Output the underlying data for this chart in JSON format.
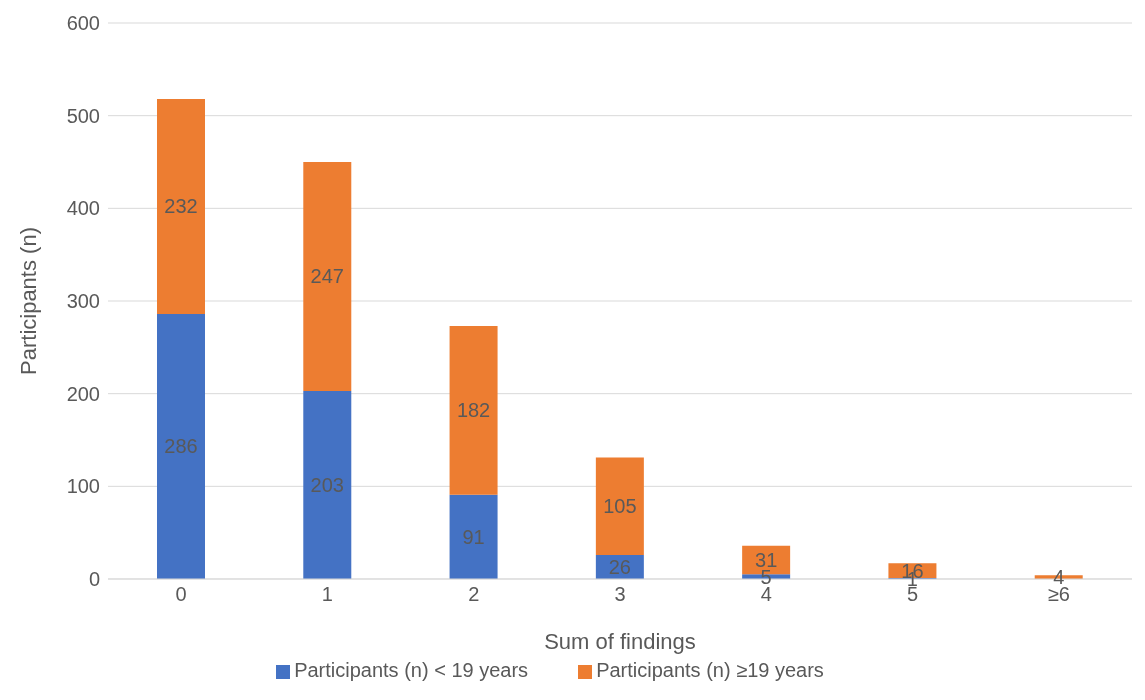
{
  "chart_data": {
    "type": "bar",
    "stacked": true,
    "xlabel": "Sum of findings",
    "ylabel": "Participants (n)",
    "categories": [
      "0",
      "1",
      "2",
      "3",
      "4",
      "5",
      "≥6"
    ],
    "series": [
      {
        "name": "Participants (n) < 19 years",
        "color": "#4472c4",
        "values": [
          286,
          203,
          91,
          26,
          5,
          1,
          0
        ],
        "value_labels": [
          "286",
          "203",
          "91",
          "26",
          "5",
          "1",
          null
        ]
      },
      {
        "name": "Participants (n) ≥19 years",
        "color": "#ed7d31",
        "values": [
          232,
          247,
          182,
          105,
          31,
          16,
          4
        ],
        "value_labels": [
          "232",
          "247",
          "182",
          "105",
          "31",
          "16",
          "4"
        ]
      }
    ],
    "ylim": [
      0,
      600
    ],
    "yticks": [
      0,
      100,
      200,
      300,
      400,
      500,
      600
    ],
    "grid": "y",
    "legend": "bottom"
  }
}
